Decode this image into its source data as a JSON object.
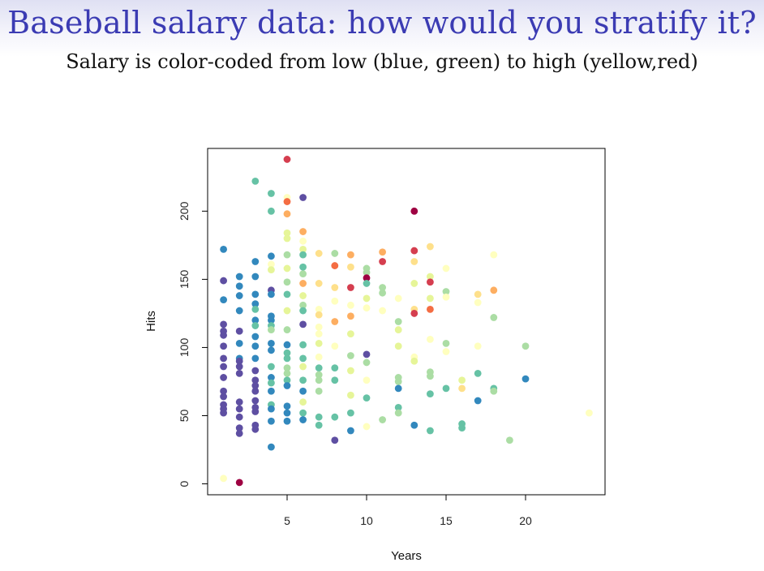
{
  "slide": {
    "title": "Baseball salary data: how would you stratify it?",
    "subtitle": "Salary is color-coded from low (blue, green) to high (yellow,red)"
  },
  "colors": {
    "salary_scale": [
      "#5e4fa2",
      "#3288bd",
      "#66c2a5",
      "#abdda4",
      "#e6f598",
      "#ffffbf",
      "#fee08b",
      "#fdae61",
      "#f46d43",
      "#d53e4f",
      "#9e0142"
    ]
  },
  "chart_data": {
    "type": "scatter",
    "title": "",
    "xlabel": "Years",
    "ylabel": "Hits",
    "xlim": [
      0,
      25
    ],
    "ylim": [
      -8,
      246
    ],
    "xticks": [
      5,
      10,
      15,
      20
    ],
    "yticks": [
      0,
      50,
      100,
      150,
      200
    ],
    "grid": false,
    "color_encodes": "salary level (0 = low/blue, 10 = high/red)",
    "points": [
      {
        "x": 1,
        "y": 172,
        "c": 1
      },
      {
        "x": 1,
        "y": 149,
        "c": 0
      },
      {
        "x": 1,
        "y": 135,
        "c": 1
      },
      {
        "x": 1,
        "y": 117,
        "c": 0
      },
      {
        "x": 1,
        "y": 112,
        "c": 0
      },
      {
        "x": 1,
        "y": 109,
        "c": 0
      },
      {
        "x": 1,
        "y": 101,
        "c": 0
      },
      {
        "x": 1,
        "y": 92,
        "c": 0
      },
      {
        "x": 1,
        "y": 86,
        "c": 0
      },
      {
        "x": 1,
        "y": 78,
        "c": 0
      },
      {
        "x": 1,
        "y": 68,
        "c": 0
      },
      {
        "x": 1,
        "y": 64,
        "c": 0
      },
      {
        "x": 1,
        "y": 58,
        "c": 0
      },
      {
        "x": 1,
        "y": 55,
        "c": 0
      },
      {
        "x": 1,
        "y": 52,
        "c": 0
      },
      {
        "x": 1,
        "y": 4,
        "c": 5
      },
      {
        "x": 2,
        "y": 152,
        "c": 1
      },
      {
        "x": 2,
        "y": 145,
        "c": 1
      },
      {
        "x": 2,
        "y": 138,
        "c": 1
      },
      {
        "x": 2,
        "y": 127,
        "c": 1
      },
      {
        "x": 2,
        "y": 112,
        "c": 0
      },
      {
        "x": 2,
        "y": 103,
        "c": 1
      },
      {
        "x": 2,
        "y": 92,
        "c": 1
      },
      {
        "x": 2,
        "y": 90,
        "c": 0
      },
      {
        "x": 2,
        "y": 86,
        "c": 0
      },
      {
        "x": 2,
        "y": 81,
        "c": 0
      },
      {
        "x": 2,
        "y": 60,
        "c": 0
      },
      {
        "x": 2,
        "y": 55,
        "c": 0
      },
      {
        "x": 2,
        "y": 49,
        "c": 0
      },
      {
        "x": 2,
        "y": 41,
        "c": 0
      },
      {
        "x": 2,
        "y": 37,
        "c": 0
      },
      {
        "x": 2,
        "y": 1,
        "c": 10
      },
      {
        "x": 3,
        "y": 222,
        "c": 2
      },
      {
        "x": 3,
        "y": 163,
        "c": 1
      },
      {
        "x": 3,
        "y": 152,
        "c": 1
      },
      {
        "x": 3,
        "y": 139,
        "c": 1
      },
      {
        "x": 3,
        "y": 132,
        "c": 1
      },
      {
        "x": 3,
        "y": 128,
        "c": 2
      },
      {
        "x": 3,
        "y": 120,
        "c": 1
      },
      {
        "x": 3,
        "y": 116,
        "c": 2
      },
      {
        "x": 3,
        "y": 108,
        "c": 1
      },
      {
        "x": 3,
        "y": 101,
        "c": 1
      },
      {
        "x": 3,
        "y": 92,
        "c": 1
      },
      {
        "x": 3,
        "y": 83,
        "c": 0
      },
      {
        "x": 3,
        "y": 76,
        "c": 0
      },
      {
        "x": 3,
        "y": 72,
        "c": 0
      },
      {
        "x": 3,
        "y": 68,
        "c": 0
      },
      {
        "x": 3,
        "y": 61,
        "c": 0
      },
      {
        "x": 3,
        "y": 56,
        "c": 0
      },
      {
        "x": 3,
        "y": 53,
        "c": 0
      },
      {
        "x": 3,
        "y": 43,
        "c": 0
      },
      {
        "x": 3,
        "y": 40,
        "c": 0
      },
      {
        "x": 4,
        "y": 213,
        "c": 2
      },
      {
        "x": 4,
        "y": 200,
        "c": 2
      },
      {
        "x": 4,
        "y": 167,
        "c": 1
      },
      {
        "x": 4,
        "y": 161,
        "c": 5
      },
      {
        "x": 4,
        "y": 157,
        "c": 4
      },
      {
        "x": 4,
        "y": 142,
        "c": 0
      },
      {
        "x": 4,
        "y": 139,
        "c": 1
      },
      {
        "x": 4,
        "y": 123,
        "c": 1
      },
      {
        "x": 4,
        "y": 120,
        "c": 1
      },
      {
        "x": 4,
        "y": 116,
        "c": 2
      },
      {
        "x": 4,
        "y": 113,
        "c": 3
      },
      {
        "x": 4,
        "y": 103,
        "c": 1
      },
      {
        "x": 4,
        "y": 98,
        "c": 1
      },
      {
        "x": 4,
        "y": 86,
        "c": 2
      },
      {
        "x": 4,
        "y": 78,
        "c": 1
      },
      {
        "x": 4,
        "y": 74,
        "c": 2
      },
      {
        "x": 4,
        "y": 68,
        "c": 1
      },
      {
        "x": 4,
        "y": 58,
        "c": 2
      },
      {
        "x": 4,
        "y": 55,
        "c": 1
      },
      {
        "x": 4,
        "y": 46,
        "c": 1
      },
      {
        "x": 4,
        "y": 27,
        "c": 1
      },
      {
        "x": 5,
        "y": 238,
        "c": 9
      },
      {
        "x": 5,
        "y": 210,
        "c": 5
      },
      {
        "x": 5,
        "y": 207,
        "c": 8
      },
      {
        "x": 5,
        "y": 198,
        "c": 7
      },
      {
        "x": 5,
        "y": 184,
        "c": 4
      },
      {
        "x": 5,
        "y": 180,
        "c": 4
      },
      {
        "x": 5,
        "y": 168,
        "c": 3
      },
      {
        "x": 5,
        "y": 158,
        "c": 4
      },
      {
        "x": 5,
        "y": 148,
        "c": 3
      },
      {
        "x": 5,
        "y": 139,
        "c": 2
      },
      {
        "x": 5,
        "y": 127,
        "c": 4
      },
      {
        "x": 5,
        "y": 113,
        "c": 3
      },
      {
        "x": 5,
        "y": 102,
        "c": 1
      },
      {
        "x": 5,
        "y": 96,
        "c": 2
      },
      {
        "x": 5,
        "y": 92,
        "c": 2
      },
      {
        "x": 5,
        "y": 85,
        "c": 3
      },
      {
        "x": 5,
        "y": 81,
        "c": 3
      },
      {
        "x": 5,
        "y": 76,
        "c": 2
      },
      {
        "x": 5,
        "y": 72,
        "c": 1
      },
      {
        "x": 5,
        "y": 57,
        "c": 1
      },
      {
        "x": 5,
        "y": 52,
        "c": 1
      },
      {
        "x": 5,
        "y": 46,
        "c": 1
      },
      {
        "x": 6,
        "y": 210,
        "c": 0
      },
      {
        "x": 6,
        "y": 185,
        "c": 7
      },
      {
        "x": 6,
        "y": 178,
        "c": 5
      },
      {
        "x": 6,
        "y": 172,
        "c": 4
      },
      {
        "x": 6,
        "y": 168,
        "c": 2
      },
      {
        "x": 6,
        "y": 159,
        "c": 2
      },
      {
        "x": 6,
        "y": 154,
        "c": 3
      },
      {
        "x": 6,
        "y": 147,
        "c": 7
      },
      {
        "x": 6,
        "y": 138,
        "c": 4
      },
      {
        "x": 6,
        "y": 131,
        "c": 3
      },
      {
        "x": 6,
        "y": 127,
        "c": 2
      },
      {
        "x": 6,
        "y": 117,
        "c": 0
      },
      {
        "x": 6,
        "y": 102,
        "c": 2
      },
      {
        "x": 6,
        "y": 92,
        "c": 2
      },
      {
        "x": 6,
        "y": 86,
        "c": 4
      },
      {
        "x": 6,
        "y": 76,
        "c": 2
      },
      {
        "x": 6,
        "y": 68,
        "c": 1
      },
      {
        "x": 6,
        "y": 60,
        "c": 4
      },
      {
        "x": 6,
        "y": 52,
        "c": 2
      },
      {
        "x": 6,
        "y": 47,
        "c": 1
      },
      {
        "x": 7,
        "y": 169,
        "c": 6
      },
      {
        "x": 7,
        "y": 147,
        "c": 6
      },
      {
        "x": 7,
        "y": 128,
        "c": 5
      },
      {
        "x": 7,
        "y": 124,
        "c": 6
      },
      {
        "x": 7,
        "y": 115,
        "c": 5
      },
      {
        "x": 7,
        "y": 110,
        "c": 5
      },
      {
        "x": 7,
        "y": 103,
        "c": 4
      },
      {
        "x": 7,
        "y": 93,
        "c": 5
      },
      {
        "x": 7,
        "y": 85,
        "c": 2
      },
      {
        "x": 7,
        "y": 80,
        "c": 3
      },
      {
        "x": 7,
        "y": 76,
        "c": 3
      },
      {
        "x": 7,
        "y": 68,
        "c": 3
      },
      {
        "x": 7,
        "y": 49,
        "c": 2
      },
      {
        "x": 7,
        "y": 43,
        "c": 2
      },
      {
        "x": 8,
        "y": 169,
        "c": 3
      },
      {
        "x": 8,
        "y": 160,
        "c": 8
      },
      {
        "x": 8,
        "y": 144,
        "c": 6
      },
      {
        "x": 8,
        "y": 134,
        "c": 5
      },
      {
        "x": 8,
        "y": 119,
        "c": 7
      },
      {
        "x": 8,
        "y": 101,
        "c": 5
      },
      {
        "x": 8,
        "y": 85,
        "c": 2
      },
      {
        "x": 8,
        "y": 76,
        "c": 2
      },
      {
        "x": 8,
        "y": 49,
        "c": 2
      },
      {
        "x": 8,
        "y": 32,
        "c": 0
      },
      {
        "x": 9,
        "y": 168,
        "c": 7
      },
      {
        "x": 9,
        "y": 159,
        "c": 6
      },
      {
        "x": 9,
        "y": 144,
        "c": 9
      },
      {
        "x": 9,
        "y": 131,
        "c": 5
      },
      {
        "x": 9,
        "y": 123,
        "c": 7
      },
      {
        "x": 9,
        "y": 110,
        "c": 4
      },
      {
        "x": 9,
        "y": 94,
        "c": 3
      },
      {
        "x": 9,
        "y": 83,
        "c": 4
      },
      {
        "x": 9,
        "y": 65,
        "c": 4
      },
      {
        "x": 9,
        "y": 52,
        "c": 2
      },
      {
        "x": 9,
        "y": 39,
        "c": 1
      },
      {
        "x": 10,
        "y": 158,
        "c": 3
      },
      {
        "x": 10,
        "y": 155,
        "c": 3
      },
      {
        "x": 10,
        "y": 151,
        "c": 10
      },
      {
        "x": 10,
        "y": 147,
        "c": 2
      },
      {
        "x": 10,
        "y": 136,
        "c": 4
      },
      {
        "x": 10,
        "y": 129,
        "c": 5
      },
      {
        "x": 10,
        "y": 95,
        "c": 0
      },
      {
        "x": 10,
        "y": 89,
        "c": 3
      },
      {
        "x": 10,
        "y": 76,
        "c": 5
      },
      {
        "x": 10,
        "y": 63,
        "c": 2
      },
      {
        "x": 10,
        "y": 42,
        "c": 5
      },
      {
        "x": 11,
        "y": 170,
        "c": 7
      },
      {
        "x": 11,
        "y": 163,
        "c": 9
      },
      {
        "x": 11,
        "y": 144,
        "c": 3
      },
      {
        "x": 11,
        "y": 140,
        "c": 3
      },
      {
        "x": 11,
        "y": 127,
        "c": 5
      },
      {
        "x": 11,
        "y": 47,
        "c": 3
      },
      {
        "x": 12,
        "y": 136,
        "c": 5
      },
      {
        "x": 12,
        "y": 119,
        "c": 3
      },
      {
        "x": 12,
        "y": 113,
        "c": 4
      },
      {
        "x": 12,
        "y": 101,
        "c": 4
      },
      {
        "x": 12,
        "y": 78,
        "c": 3
      },
      {
        "x": 12,
        "y": 75,
        "c": 3
      },
      {
        "x": 12,
        "y": 70,
        "c": 1
      },
      {
        "x": 12,
        "y": 56,
        "c": 2
      },
      {
        "x": 12,
        "y": 52,
        "c": 3
      },
      {
        "x": 13,
        "y": 200,
        "c": 10
      },
      {
        "x": 13,
        "y": 171,
        "c": 9
      },
      {
        "x": 13,
        "y": 163,
        "c": 6
      },
      {
        "x": 13,
        "y": 147,
        "c": 4
      },
      {
        "x": 13,
        "y": 128,
        "c": 6
      },
      {
        "x": 13,
        "y": 125,
        "c": 9
      },
      {
        "x": 13,
        "y": 93,
        "c": 5
      },
      {
        "x": 13,
        "y": 90,
        "c": 4
      },
      {
        "x": 13,
        "y": 43,
        "c": 1
      },
      {
        "x": 14,
        "y": 174,
        "c": 6
      },
      {
        "x": 14,
        "y": 152,
        "c": 4
      },
      {
        "x": 14,
        "y": 148,
        "c": 9
      },
      {
        "x": 14,
        "y": 136,
        "c": 4
      },
      {
        "x": 14,
        "y": 128,
        "c": 8
      },
      {
        "x": 14,
        "y": 106,
        "c": 5
      },
      {
        "x": 14,
        "y": 82,
        "c": 3
      },
      {
        "x": 14,
        "y": 79,
        "c": 3
      },
      {
        "x": 14,
        "y": 66,
        "c": 2
      },
      {
        "x": 14,
        "y": 39,
        "c": 2
      },
      {
        "x": 15,
        "y": 158,
        "c": 5
      },
      {
        "x": 15,
        "y": 141,
        "c": 3
      },
      {
        "x": 15,
        "y": 137,
        "c": 5
      },
      {
        "x": 15,
        "y": 103,
        "c": 3
      },
      {
        "x": 15,
        "y": 97,
        "c": 5
      },
      {
        "x": 15,
        "y": 70,
        "c": 2
      },
      {
        "x": 16,
        "y": 76,
        "c": 4
      },
      {
        "x": 16,
        "y": 70,
        "c": 6
      },
      {
        "x": 16,
        "y": 44,
        "c": 2
      },
      {
        "x": 16,
        "y": 41,
        "c": 2
      },
      {
        "x": 17,
        "y": 139,
        "c": 6
      },
      {
        "x": 17,
        "y": 133,
        "c": 5
      },
      {
        "x": 17,
        "y": 101,
        "c": 5
      },
      {
        "x": 17,
        "y": 81,
        "c": 2
      },
      {
        "x": 17,
        "y": 61,
        "c": 1
      },
      {
        "x": 18,
        "y": 168,
        "c": 5
      },
      {
        "x": 18,
        "y": 142,
        "c": 7
      },
      {
        "x": 18,
        "y": 122,
        "c": 3
      },
      {
        "x": 18,
        "y": 70,
        "c": 2
      },
      {
        "x": 18,
        "y": 68,
        "c": 3
      },
      {
        "x": 19,
        "y": 32,
        "c": 3
      },
      {
        "x": 20,
        "y": 101,
        "c": 3
      },
      {
        "x": 20,
        "y": 77,
        "c": 1
      },
      {
        "x": 24,
        "y": 52,
        "c": 5
      }
    ]
  }
}
